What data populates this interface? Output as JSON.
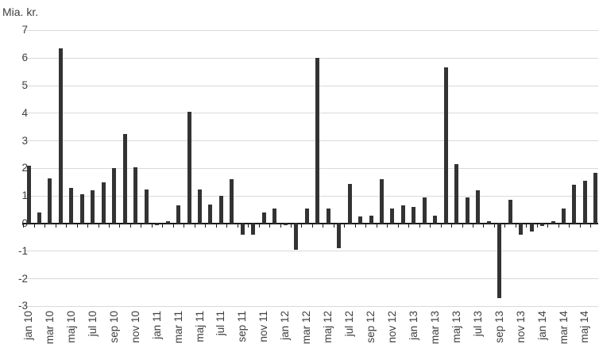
{
  "chart_data": {
    "type": "bar",
    "title": "",
    "ylabel": "Mia. kr.",
    "xlabel": "",
    "ylim": [
      -3,
      7
    ],
    "yticks": [
      7,
      6,
      5,
      4,
      3,
      2,
      1,
      0,
      -1,
      -2,
      -3
    ],
    "grid": true,
    "legend": false,
    "x_tick_every": 2,
    "colors": {
      "bar": "#333333",
      "grid": "#d9d9d9",
      "axis": "#1a1a1a",
      "text": "#404040"
    },
    "categories": [
      "jan 10",
      "feb 10",
      "mar 10",
      "apr 10",
      "maj 10",
      "jun 10",
      "jul 10",
      "aug 10",
      "sep 10",
      "okt 10",
      "nov 10",
      "dec 10",
      "jan 11",
      "feb 11",
      "mar 11",
      "apr 11",
      "maj 11",
      "jun 11",
      "jul 11",
      "aug 11",
      "sep 11",
      "okt 11",
      "nov 11",
      "dec 11",
      "jan 12",
      "feb 12",
      "mar 12",
      "apr 12",
      "maj 12",
      "jun 12",
      "jul 12",
      "aug 12",
      "sep 12",
      "okt 12",
      "nov 12",
      "dec 12",
      "jan 13",
      "feb 13",
      "mar 13",
      "apr 13",
      "maj 13",
      "jun 13",
      "jul 13",
      "aug 13",
      "sep 13",
      "okt 13",
      "nov 13",
      "dec 13",
      "jan 14",
      "feb 14",
      "mar 14",
      "apr 14",
      "maj 14",
      "jun 14"
    ],
    "values": [
      2.1,
      0.4,
      1.65,
      6.35,
      1.3,
      1.05,
      1.2,
      1.5,
      2.0,
      3.25,
      2.05,
      1.25,
      -0.05,
      0.1,
      0.65,
      4.05,
      1.25,
      0.7,
      1.0,
      1.6,
      -0.4,
      -0.4,
      0.4,
      0.55,
      -0.05,
      -0.95,
      0.55,
      6.0,
      0.55,
      -0.9,
      1.45,
      0.25,
      0.3,
      1.6,
      0.55,
      0.65,
      0.6,
      0.95,
      0.3,
      5.65,
      2.15,
      0.95,
      1.2,
      0.1,
      -2.7,
      0.85,
      -0.4,
      -0.3,
      -0.1,
      0.1,
      0.55,
      1.4,
      1.55,
      1.85
    ],
    "visible_x_tick_labels": [
      "jan 10",
      "mar 10",
      "maj 10",
      "jul 10",
      "sep 10",
      "nov 10",
      "jan 11",
      "mar 11",
      "maj 11",
      "jul 11",
      "sep 11",
      "nov 11",
      "jan 12",
      "mar 12",
      "maj 12",
      "jul 12",
      "sep 12",
      "nov 12",
      "jan 13",
      "mar 13",
      "maj 13",
      "jul 13",
      "sep 13",
      "nov 13",
      "jan 14",
      "mar 14",
      "maj 14"
    ]
  }
}
